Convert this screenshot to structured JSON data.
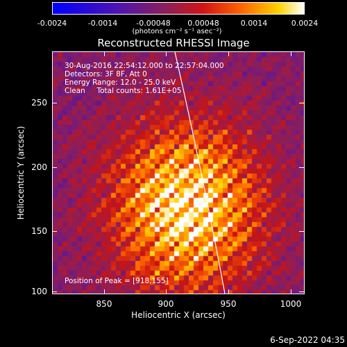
{
  "colorbar": {
    "tick_labels": [
      "-0.0024",
      "-0.0014",
      "-0.00048",
      "0.00048",
      "0.0014",
      "0.0024"
    ],
    "unit_label": "(photons cm⁻² s⁻¹ asec⁻²)",
    "range": [
      -0.0024,
      0.0024
    ]
  },
  "plot": {
    "title": "Reconstructed RHESSI Image",
    "annotations": {
      "time_range": "30-Aug-2016 22:54:12.000 to 22:57:04.000",
      "detectors": "Detectors: 3F 8F, Att 0",
      "energy_range": "Energy Range: 12.0 - 25.0 keV",
      "method": "Clean     Total counts: 1.61E+05",
      "peak": "Position of Peak = [918,155]"
    },
    "xlabel": "Heliocentric X (arcsec)",
    "ylabel": "Heliocentric Y (arcsec)",
    "x_ticks": [
      "850",
      "900",
      "950",
      "1000"
    ],
    "y_ticks": [
      "100",
      "150",
      "200",
      "250"
    ],
    "footer_date": "6-Sep-2022 04:35"
  },
  "chart_data": {
    "type": "heatmap",
    "title": "Reconstructed RHESSI Image",
    "xlabel": "Heliocentric X (arcsec)",
    "ylabel": "Heliocentric Y (arcsec)",
    "xlim": [
      808,
      1003
    ],
    "ylim": [
      100,
      285
    ],
    "peak": [
      918,
      155
    ],
    "colorbar_range": [
      -0.0024,
      0.0024
    ],
    "colormap": [
      "#0000ff",
      "#4a14b4",
      "#8c1e5a",
      "#c81414",
      "#ff6400",
      "#ffd200",
      "#ffffff"
    ]
  }
}
